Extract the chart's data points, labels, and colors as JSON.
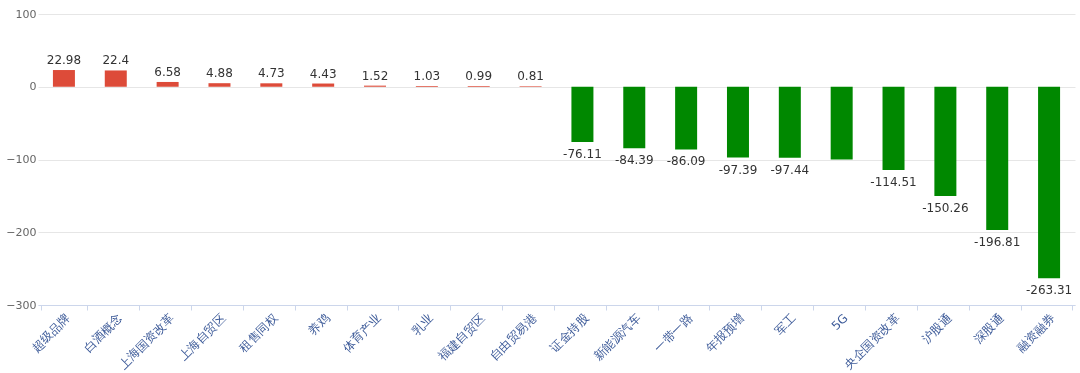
{
  "chart_data": {
    "type": "bar",
    "categories": [
      "超级品牌",
      "白酒概念",
      "上海国资改革",
      "上海自贸区",
      "租售同权",
      "养鸡",
      "体育产业",
      "乳业",
      "福建自贸区",
      "自由贸易港",
      "证金持股",
      "新能源汽车",
      "一带一路",
      "年报预增",
      "军工",
      "5G",
      "央企国资改革",
      "沪股通",
      "深股通",
      "融资融券"
    ],
    "values": [
      22.98,
      22.4,
      6.58,
      4.88,
      4.73,
      4.43,
      1.52,
      1.03,
      0.99,
      0.81,
      -76.11,
      -84.39,
      -86.09,
      -97.39,
      -97.44,
      -100,
      -114.51,
      -150.26,
      -196.81,
      -263.31
    ],
    "colors": [
      "#dd4b39",
      "#dd4b39",
      "#dd4b39",
      "#dd4b39",
      "#dd4b39",
      "#dd4b39",
      "#dd4b39",
      "#dd4b39",
      "#dd4b39",
      "#dd4b39",
      "#008800",
      "#008800",
      "#008800",
      "#008800",
      "#008800",
      "#008800",
      "#008800",
      "#008800",
      "#008800",
      "#008800"
    ],
    "value_labels": [
      "22.98",
      "22.4",
      "6.58",
      "4.88",
      "4.73",
      "4.43",
      "1.52",
      "1.03",
      "0.99",
      "0.81",
      "-76.11",
      "-84.39",
      "-86.09",
      "-97.39",
      "-97.44",
      null,
      "-114.51",
      "-150.26",
      "-196.81",
      "-263.31"
    ],
    "ylim": [
      -300,
      100
    ],
    "yticks": [
      -300,
      -200,
      -100,
      0,
      100
    ],
    "grid": "y"
  }
}
